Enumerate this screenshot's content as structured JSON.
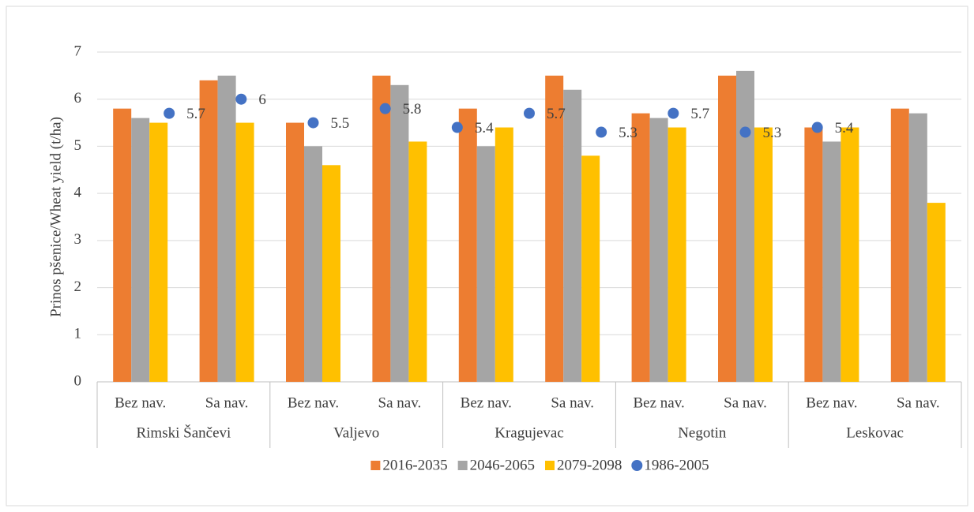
{
  "chart_data": {
    "type": "bar",
    "y_label": "Prinos pšenice/Wheat yield (t/ha)",
    "categories": [
      "Bez nav.",
      "Sa nav.",
      "Bez nav.",
      "Sa nav.",
      "Bez nav.",
      "Sa nav.",
      "Bez nav.",
      "Sa nav.",
      "Bez nav.",
      "Sa nav."
    ],
    "groups": [
      "Rimski Šančevi",
      "Valjevo",
      "Kragujevac",
      "Negotin",
      "Leskovac"
    ],
    "ylim": [
      0,
      7
    ],
    "yticks": [
      0,
      1,
      2,
      3,
      4,
      5,
      6,
      7
    ],
    "grid": true,
    "legend": "bottom",
    "series": [
      {
        "name": "2016-2035",
        "color": "#ED7D31",
        "values": [
          5.8,
          6.4,
          5.5,
          6.5,
          5.8,
          6.5,
          5.7,
          6.5,
          5.4,
          5.8
        ]
      },
      {
        "name": "2046-2065",
        "color": "#A5A5A5",
        "values": [
          5.6,
          6.5,
          5.0,
          6.3,
          5.0,
          6.2,
          5.6,
          6.6,
          5.1,
          5.7
        ]
      },
      {
        "name": "2079-2098",
        "color": "#FFC000",
        "values": [
          5.5,
          5.5,
          4.6,
          5.1,
          5.4,
          4.8,
          5.4,
          5.4,
          5.4,
          3.8
        ]
      },
      {
        "name": "1986-2005",
        "color": "#4472C4",
        "type": "scatter",
        "x": [
          1,
          2,
          3,
          4,
          5,
          6,
          7,
          8,
          9,
          10
        ],
        "xlim": [
          0,
          12
        ],
        "values": [
          5.7,
          6,
          5.5,
          5.8,
          5.4,
          5.7,
          5.3,
          5.7,
          5.3,
          5.4
        ],
        "data_labels": true
      }
    ]
  }
}
